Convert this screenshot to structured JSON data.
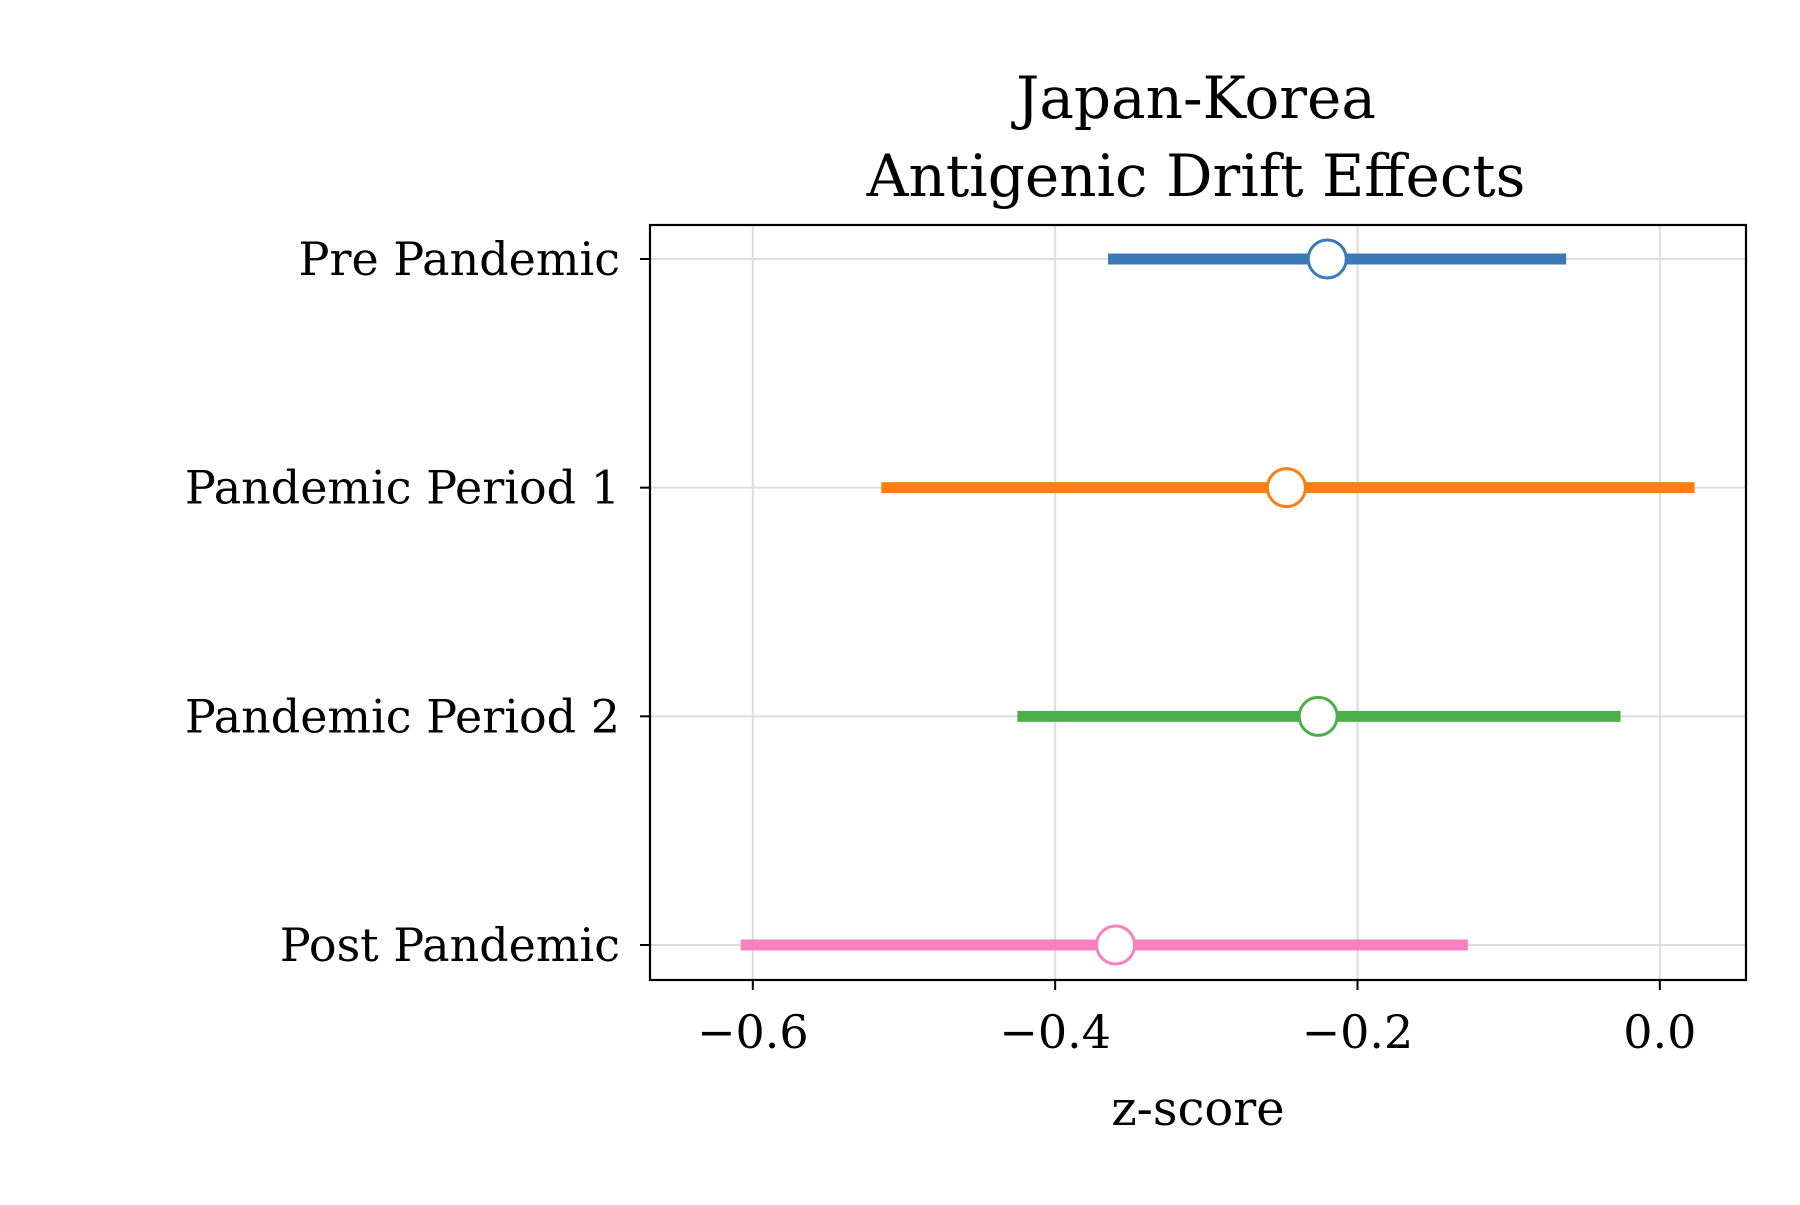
{
  "chart_data": {
    "type": "scatter",
    "title": "Japan-Korea",
    "subtitle": "Antigenic Drift Effects",
    "xlabel": "z-score",
    "ylabel": "",
    "xlim": [
      -0.668,
      0.057
    ],
    "xticks": [
      -0.6,
      -0.4,
      -0.2,
      0.0
    ],
    "xtick_labels": [
      "−0.6",
      "−0.4",
      "−0.2",
      "0.0"
    ],
    "grid": true,
    "categories": [
      "Pre Pandemic",
      "Pandemic Period 1",
      "Pandemic Period 2",
      "Post Pandemic"
    ],
    "estimates": [
      {
        "label": "Pre Pandemic",
        "estimate": -0.22,
        "lower": -0.365,
        "upper": -0.062,
        "color": "#3a7ab8"
      },
      {
        "label": "Pandemic Period 1",
        "estimate": -0.247,
        "lower": -0.515,
        "upper": 0.023,
        "color": "#ff7f0e"
      },
      {
        "label": "Pandemic Period 2",
        "estimate": -0.226,
        "lower": -0.425,
        "upper": -0.026,
        "color": "#4daf4a"
      },
      {
        "label": "Post Pandemic",
        "estimate": -0.36,
        "lower": -0.608,
        "upper": -0.127,
        "color": "#f781bf"
      }
    ]
  }
}
